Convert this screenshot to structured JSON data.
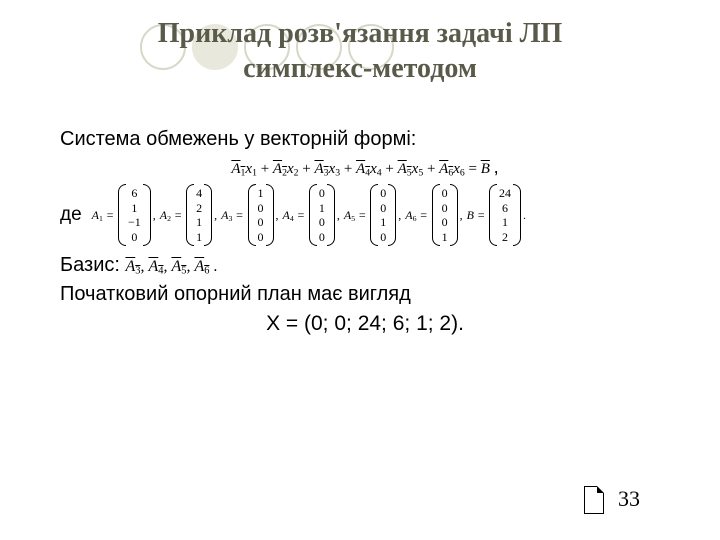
{
  "title_line1": "Приклад розв'язання задачі ЛП",
  "title_line2": "симплекс-методом",
  "sys_label": "Система обмежень у векторній формі:",
  "eqn_terms": [
    "A",
    "A",
    "A",
    "A",
    "A",
    "A"
  ],
  "eqn_term_subs": [
    "1",
    "2",
    "3",
    "4",
    "5",
    "6"
  ],
  "eqn_vars": [
    "x",
    "x",
    "x",
    "x",
    "x",
    "x"
  ],
  "eqn_var_subs": [
    "1",
    "2",
    "3",
    "4",
    "5",
    "6"
  ],
  "eqn_rhs": "B",
  "where": "де",
  "vectors": {
    "A1": {
      "label": "A",
      "sub": "1",
      "vals": [
        "6",
        "1",
        "−1",
        "0"
      ]
    },
    "A2": {
      "label": "A",
      "sub": "2",
      "vals": [
        "4",
        "2",
        "1",
        "1"
      ]
    },
    "A3": {
      "label": "A",
      "sub": "3",
      "vals": [
        "1",
        "0",
        "0",
        "0"
      ]
    },
    "A4": {
      "label": "A",
      "sub": "4",
      "vals": [
        "0",
        "1",
        "0",
        "0"
      ]
    },
    "A5": {
      "label": "A",
      "sub": "5",
      "vals": [
        "0",
        "0",
        "1",
        "0"
      ]
    },
    "A6": {
      "label": "A",
      "sub": "6",
      "vals": [
        "0",
        "0",
        "0",
        "1"
      ]
    },
    "B": {
      "label": "B",
      "sub": "",
      "vals": [
        "24",
        "6",
        "1",
        "2"
      ]
    }
  },
  "basis_label": "Базис:",
  "basis_items": [
    "A",
    "A",
    "A",
    "A"
  ],
  "basis_subs": [
    "3",
    "4",
    "5",
    "6"
  ],
  "plan_label": "Початковий опорний план має вигляд",
  "x_line": "X = (0; 0; 24; 6; 1; 2).",
  "page_number": "33",
  "colors": {
    "bg": "#ffffff",
    "title": "#5a5a4a",
    "text": "#000000",
    "circ_border": "#d8d8c8",
    "circ_fill": "#e8e8dc"
  },
  "fonts": {
    "title_family": "Times New Roman",
    "title_size_pt": 21,
    "body_size_pt": 15,
    "math_size_pt": 9
  }
}
